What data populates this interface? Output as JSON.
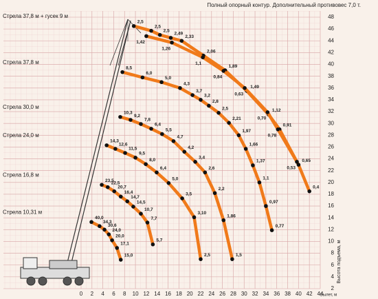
{
  "chart_data": {
    "type": "scatter",
    "title": "Полный опорный контур. Дополнительный противовес 7,0 т.",
    "x_label": "Вылет, м",
    "y_label": "Высота подъема, м",
    "xlim": [
      0,
      44
    ],
    "ylim": [
      2,
      48
    ],
    "xticks": [
      0,
      2,
      4,
      6,
      8,
      10,
      12,
      14,
      16,
      18,
      20,
      22,
      24,
      26,
      28,
      30,
      32,
      34,
      36,
      38,
      40,
      42,
      44
    ],
    "yticks": [
      2,
      4,
      6,
      8,
      10,
      12,
      14,
      16,
      18,
      20,
      22,
      24,
      26,
      28,
      30,
      32,
      34,
      36,
      38,
      40,
      42,
      44,
      46,
      48
    ],
    "grid": true,
    "color": "#f07a1a",
    "series": [
      {
        "name": "Стрела 37,8 м + гусек 9 м",
        "curves": [
          {
            "x": [
              9.7,
              12.9,
              14.5,
              16.5,
              18.5,
              22.5,
              26.5,
              30.5,
              34.5,
              36.5,
              40,
              42
            ],
            "y": [
              46.5,
              45.7,
              45,
              44.5,
              44,
              41.5,
              39,
              35.5,
              31.5,
              29,
              23,
              18.5
            ],
            "labels": [
              "2,5",
              "2,5",
              "2,5",
              "2,49",
              "2,33",
              "2,06",
              "1,89",
              "1,49",
              "1,12",
              "0,91",
              "0,65",
              "0,4"
            ]
          },
          {
            "x": [
              12,
              16.7,
              22.4,
              26.2,
              30.1,
              34.3,
              36.2,
              39.7
            ],
            "y": [
              44.8,
              43.7,
              41.2,
              38.9,
              36,
              31.9,
              29,
              23.5
            ],
            "labels": [
              "1,42",
              "1,26",
              "1,1",
              "0,84",
              "0,63",
              "0,70",
              "0,78",
              "0,53"
            ]
          }
        ]
      },
      {
        "name": "Стрела 37,8 м",
        "curves": [
          {
            "x": [
              7.6,
              11.3,
              14.8,
              18.2,
              20.5,
              22,
              23.5,
              25.3,
              27.2,
              29,
              30.3,
              31.6,
              32.8,
              34,
              35.1
            ],
            "y": [
              38.7,
              37.8,
              37,
              36,
              34.8,
              34,
              33,
              31.8,
              30.1,
              28,
              25.7,
              22.9,
              20,
              16,
              11.9
            ],
            "labels": [
              "8,5",
              "6,0",
              "5,0",
              "4,3",
              "3,7",
              "3,2",
              "2,8",
              "2,5",
              "2,21",
              "1,97",
              "1,66",
              "1,37",
              "1,1",
              "0,97",
              "0,77"
            ]
          }
        ]
      },
      {
        "name": "Стрела 30,0 м",
        "curves": [
          {
            "x": [
              7.2,
              9.1,
              11,
              12.9,
              14.9,
              17,
              19,
              21,
              22.8,
              24.6,
              26.2,
              27.8
            ],
            "y": [
              31.1,
              30.6,
              29.9,
              29.1,
              28.2,
              27,
              25.2,
              23.5,
              21.7,
              18.2,
              13.6,
              7
            ],
            "labels": [
              "10,3",
              "9,2",
              "7,8",
              "6,4",
              "5,5",
              "4,7",
              "4,2",
              "3,4",
              "2,6",
              "2,2",
              "1,86",
              "1,5"
            ]
          }
        ]
      },
      {
        "name": "Стрела 24,0 м",
        "curves": [
          {
            "x": [
              4.7,
              6.3,
              8.1,
              10,
              11.9,
              13.9,
              16.1,
              18.6,
              20.8,
              22
            ],
            "y": [
              26.3,
              25.7,
              25,
              24.2,
              23.1,
              21.7,
              19.9,
              17.3,
              14.1,
              7
            ],
            "labels": [
              "14,3",
              "12,6",
              "11,5",
              "9,5",
              "8,0",
              "6,4",
              "5,0",
              "3,5",
              "3,10",
              "2,5"
            ]
          }
        ]
      },
      {
        "name": "Стрела 16,8 м",
        "curves": [
          {
            "x": [
              3.8,
              4.9,
              6.1,
              7.3,
              8.5,
              9.6,
              11,
              12.2,
              13.2
            ],
            "y": [
              19.6,
              19.2,
              18.5,
              17.6,
              16.8,
              15.9,
              14.7,
              13.2,
              9.5
            ],
            "labels": [
              "23,5",
              "22,5",
              "20,7",
              "16,4",
              "14,7",
              "14,5",
              "10,7",
              "7,7",
              "5,7"
            ]
          }
        ]
      },
      {
        "name": "Стрела 10,31 м",
        "curves": [
          {
            "x": [
              1.9,
              3.4,
              4.3,
              5.1,
              5.7,
              6.6,
              7.3
            ],
            "y": [
              13.3,
              12.6,
              12,
              11.2,
              10.2,
              8.9,
              6.9
            ],
            "labels": [
              "40,0",
              "34,3",
              "30,6",
              "24,0",
              "20,0",
              "17,1",
              "15,0"
            ]
          }
        ]
      }
    ]
  }
}
